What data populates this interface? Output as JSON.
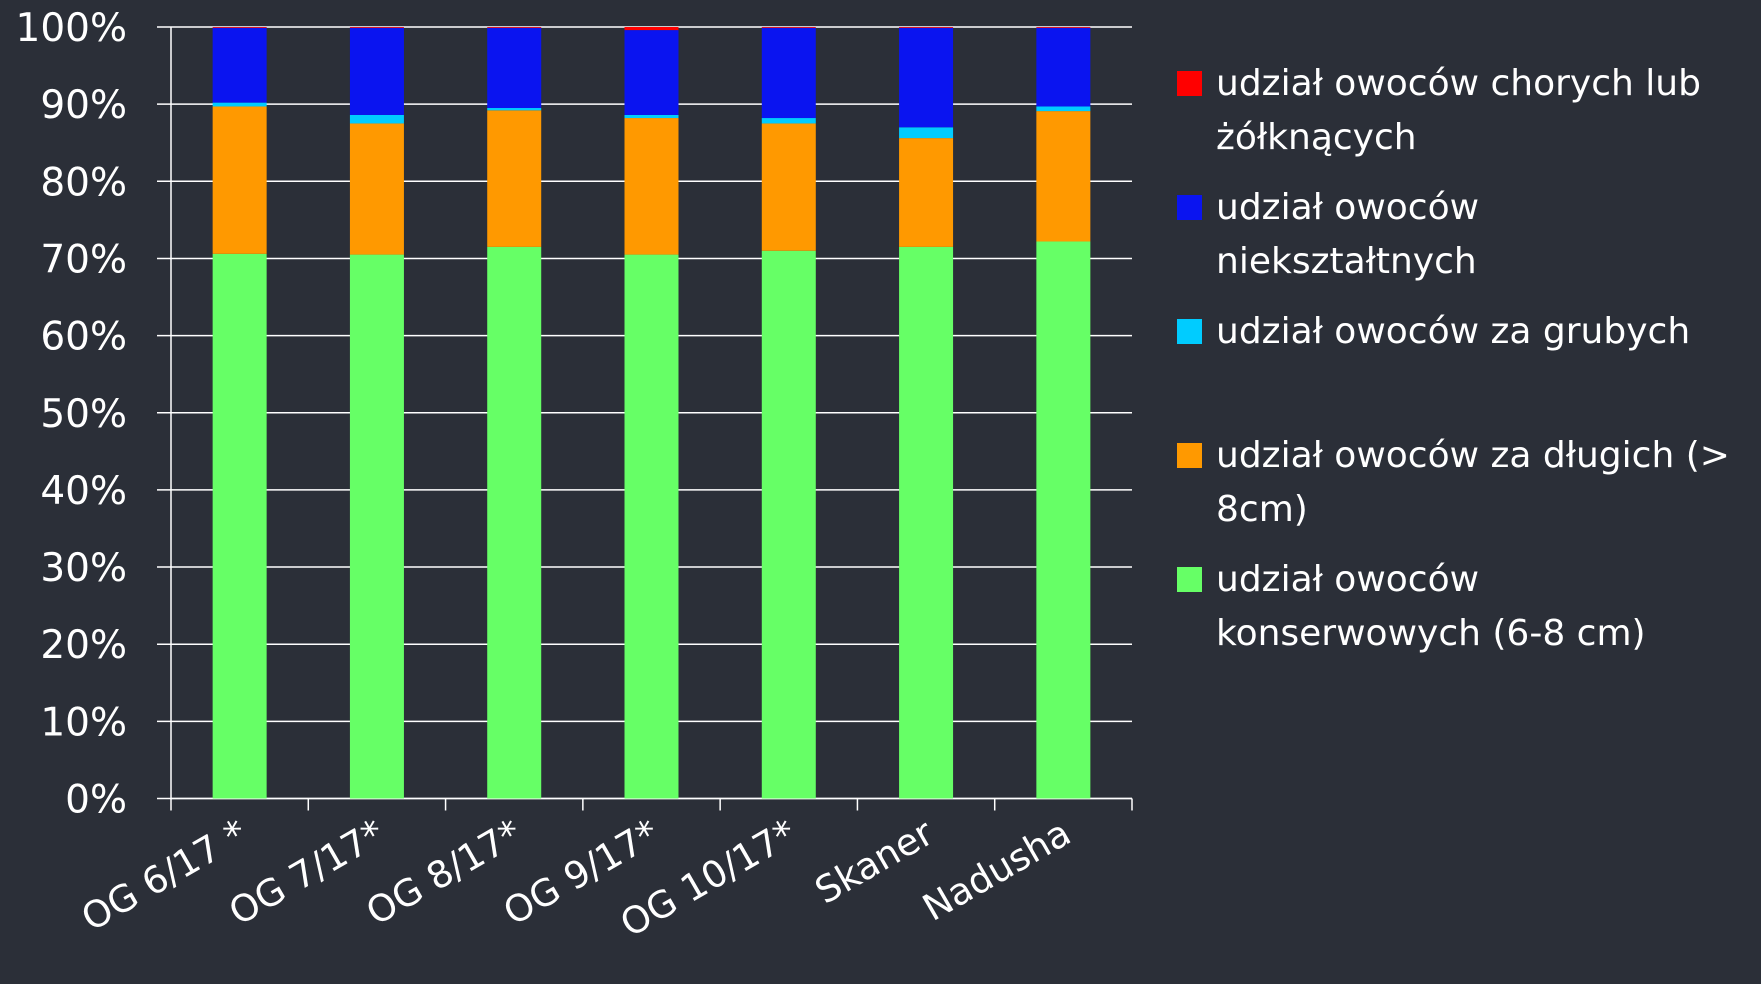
{
  "chart_data": {
    "type": "stacked_bar",
    "categories": [
      "OG 6/17 *",
      "OG 7/17*",
      "OG 8/17*",
      "OG 9/17*",
      "OG 10/17*",
      "Skaner",
      "Nadusha"
    ],
    "series": [
      {
        "name": "udział owoców konserwowych (6-8 cm)",
        "color": "#66ff66",
        "values": [
          70.6,
          70.5,
          71.5,
          70.5,
          71.0,
          71.5,
          72.2
        ]
      },
      {
        "name": "udział owoców za długich (> 8cm)",
        "color": "#ff9900",
        "values": [
          19.1,
          17.0,
          17.7,
          17.7,
          16.5,
          14.1,
          16.9
        ]
      },
      {
        "name": "udział owoców za grubych",
        "color": "#00ccff",
        "values": [
          0.5,
          1.1,
          0.3,
          0.4,
          0.7,
          1.4,
          0.6
        ]
      },
      {
        "name": "udział owoców niekształtnych",
        "color": "#0a14f0",
        "values": [
          9.7,
          11.3,
          10.4,
          11.0,
          11.7,
          12.9,
          10.2
        ]
      },
      {
        "name": "udział owoców chorych lub żółknących",
        "color": "#ff0000",
        "values": [
          0.1,
          0.1,
          0.1,
          0.4,
          0.1,
          0.1,
          0.1
        ]
      }
    ],
    "ylim": [
      0,
      100
    ],
    "yticks": [
      {
        "value": 0,
        "label": "0%"
      },
      {
        "value": 10,
        "label": "10%"
      },
      {
        "value": 20,
        "label": "20%"
      },
      {
        "value": 30,
        "label": "30%"
      },
      {
        "value": 40,
        "label": "40%"
      },
      {
        "value": 50,
        "label": "50%"
      },
      {
        "value": 60,
        "label": "60%"
      },
      {
        "value": 70,
        "label": "70%"
      },
      {
        "value": 80,
        "label": "80%"
      },
      {
        "value": 90,
        "label": "90%"
      },
      {
        "value": 100,
        "label": "100%"
      }
    ],
    "grid": true,
    "legend": "right"
  }
}
